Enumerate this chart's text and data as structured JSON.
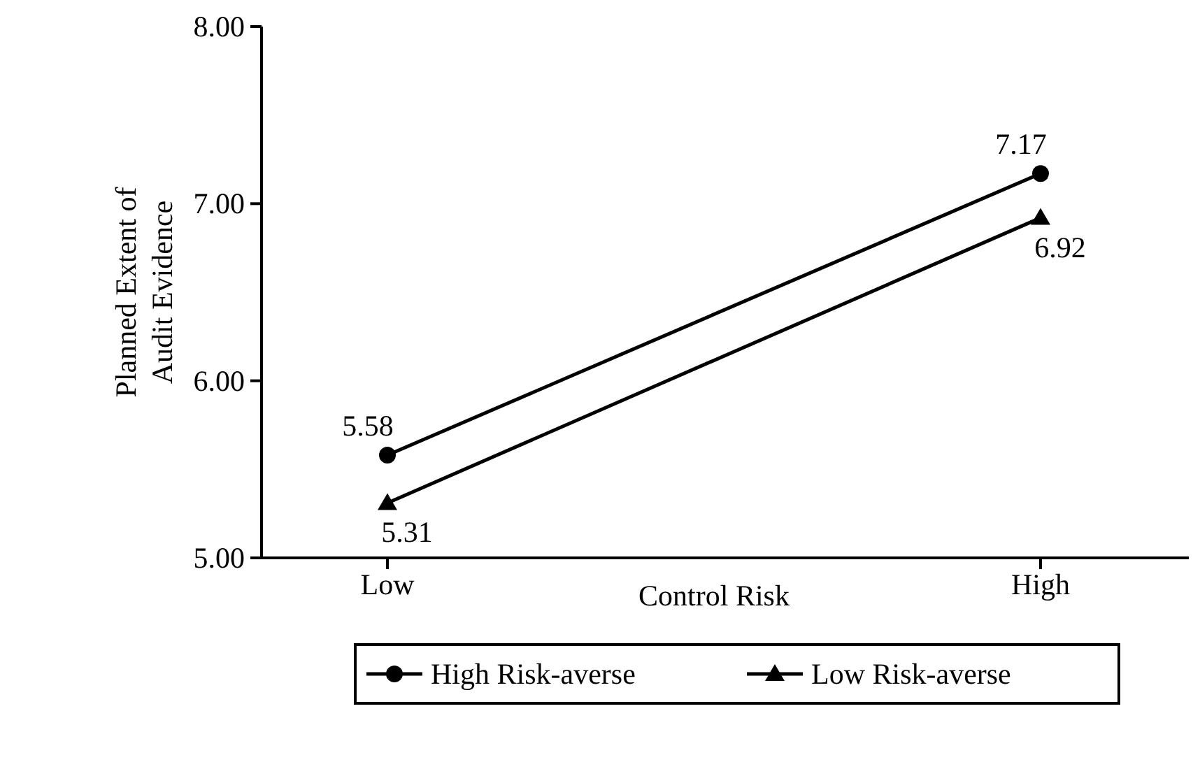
{
  "chart_data": {
    "type": "line",
    "xlabel": "Control Risk",
    "ylabel": "Planned Extent of\nAudit Evidence",
    "categories": [
      "Low",
      "High"
    ],
    "series": [
      {
        "name": "High Risk-averse",
        "color": "#000000",
        "marker": "circle",
        "values": [
          5.58,
          7.17
        ]
      },
      {
        "name": "Low Risk-averse",
        "color": "#000000",
        "marker": "triangle",
        "values": [
          5.31,
          6.92
        ]
      }
    ],
    "ylim": [
      5,
      8
    ],
    "yticks": [
      {
        "value": 5,
        "label": "5.00"
      },
      {
        "value": 6,
        "label": "6.00"
      },
      {
        "value": 7,
        "label": "7.00"
      },
      {
        "value": 8,
        "label": "8.00"
      }
    ],
    "data_labels": true,
    "legend": "bottom",
    "grid": false,
    "line_style": "solid"
  }
}
